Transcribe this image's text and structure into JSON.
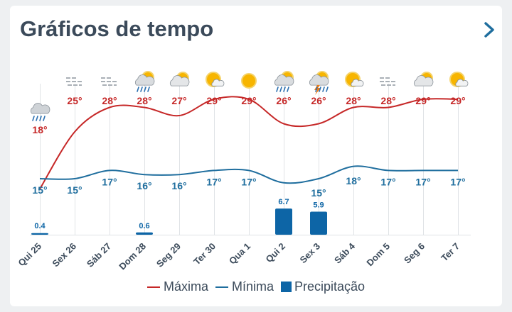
{
  "page": {
    "title": "Gráficos de tempo"
  },
  "colors": {
    "max": "#c62828",
    "min": "#1f6e9e",
    "precip": "#0d65a6",
    "text": "#3b4a5a",
    "grid": "#dfe3e6"
  },
  "days": [
    {
      "label": "Qui 25",
      "icon": "rain-cloud-icon"
    },
    {
      "label": "Sex 26",
      "icon": "fog-icon"
    },
    {
      "label": "Sáb 27",
      "icon": "fog-icon"
    },
    {
      "label": "Dom 28",
      "icon": "sun-rain-cloud-icon"
    },
    {
      "label": "Seg 29",
      "icon": "partly-cloudy-icon"
    },
    {
      "label": "Ter 30",
      "icon": "mostly-sunny-icon"
    },
    {
      "label": "Qua 1",
      "icon": "sun-icon"
    },
    {
      "label": "Qui 2",
      "icon": "sun-rain-cloud-icon"
    },
    {
      "label": "Sex 3",
      "icon": "thunderstorm-icon"
    },
    {
      "label": "Sáb 4",
      "icon": "mostly-sunny-icon"
    },
    {
      "label": "Dom 5",
      "icon": "fog-icon"
    },
    {
      "label": "Seg 6",
      "icon": "partly-cloudy-icon"
    },
    {
      "label": "Ter 7",
      "icon": "mostly-sunny-icon"
    }
  ],
  "legend": {
    "max": "Máxima",
    "min": "Mínima",
    "precip": "Precipitação"
  },
  "chart_data": {
    "type": "line",
    "categories": [
      "Qui 25",
      "Sex 26",
      "Sáb 27",
      "Dom 28",
      "Seg 29",
      "Ter 30",
      "Qua 1",
      "Qui 2",
      "Sex 3",
      "Sáb 4",
      "Dom 5",
      "Seg 6",
      "Ter 7"
    ],
    "series": [
      {
        "name": "Máxima",
        "values": [
          18,
          25,
          28,
          28,
          27,
          29,
          29,
          26,
          26,
          28,
          28,
          29,
          29
        ],
        "labels": [
          "18°",
          "25°",
          "28°",
          "28°",
          "27°",
          "29°",
          "29°",
          "26°",
          "26°",
          "28°",
          "28°",
          "29°",
          "29°"
        ]
      },
      {
        "name": "Mínima",
        "values": [
          15,
          15,
          17,
          16,
          16,
          17,
          17,
          14,
          15,
          18,
          17,
          17,
          17
        ],
        "labels": [
          "15°",
          "15°",
          "17°",
          "16°",
          "16°",
          "17°",
          "17°",
          "",
          "15°",
          "18°",
          "17°",
          "17°",
          "17°"
        ]
      },
      {
        "name": "Precipitação",
        "type": "bar",
        "values": [
          0.4,
          0,
          0,
          0.6,
          0,
          0,
          0,
          6.7,
          5.9,
          0,
          0,
          0,
          0
        ],
        "labels": [
          "0.4",
          "",
          "",
          "0.6",
          "",
          "",
          "",
          "6.7",
          "5.9",
          "",
          "",
          "",
          ""
        ]
      }
    ],
    "legend_position": "bottom"
  }
}
